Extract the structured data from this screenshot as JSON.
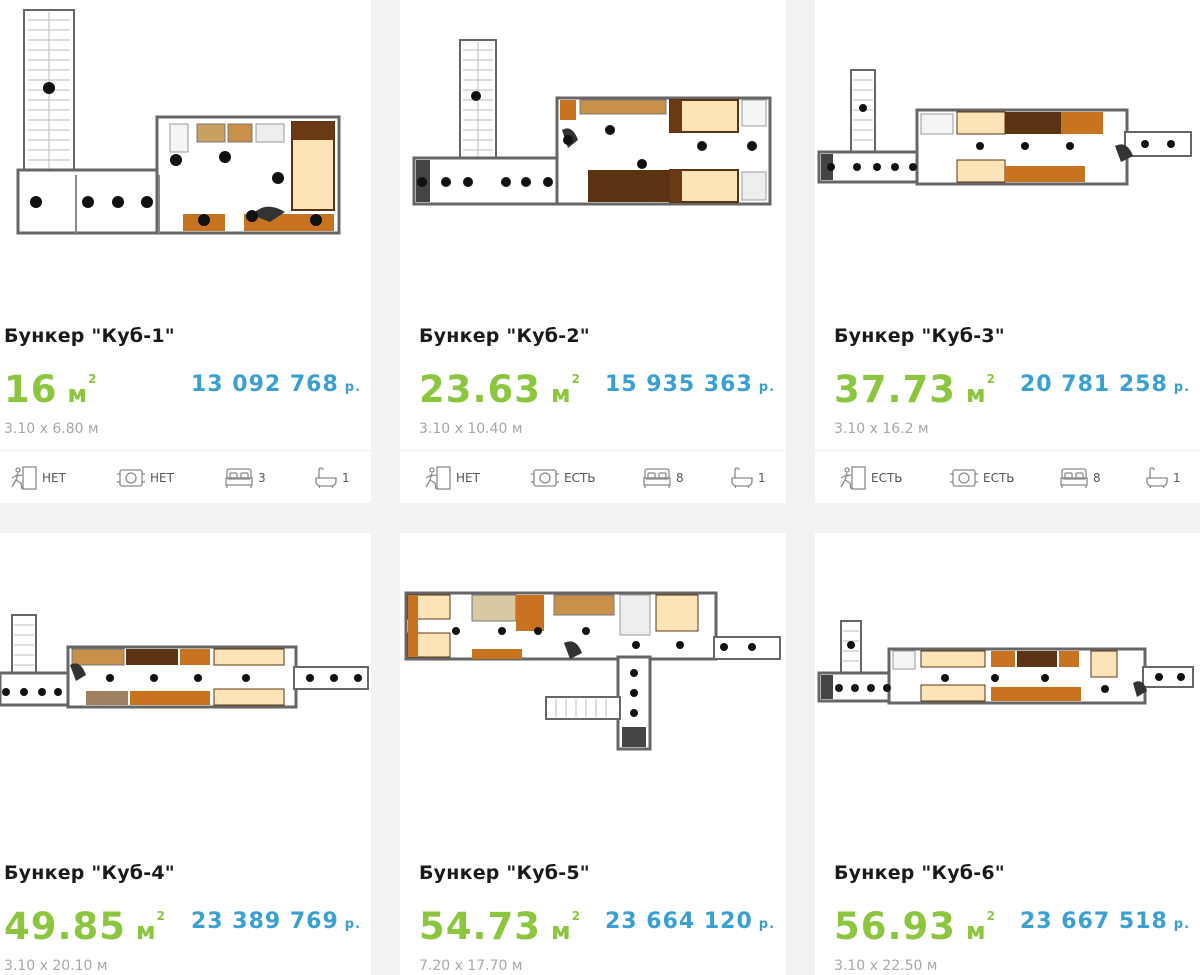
{
  "cards": [
    {
      "title": "Бункер \"Куб-1\"",
      "area_value": "16",
      "area_unit": "м",
      "area_exp": "2",
      "price": "13 092 768",
      "currency": "р.",
      "dims": "3.10 х 6.80 м",
      "exit": "НЕТ",
      "vent": "НЕТ",
      "beds": "3",
      "baths": "1"
    },
    {
      "title": "Бункер \"Куб-2\"",
      "area_value": "23.63",
      "area_unit": "м",
      "area_exp": "2",
      "price": "15 935 363",
      "currency": "р.",
      "dims": "3.10 х 10.40 м",
      "exit": "НЕТ",
      "vent": "ЕСТЬ",
      "beds": "8",
      "baths": "1"
    },
    {
      "title": "Бункер \"Куб-3\"",
      "area_value": "37.73",
      "area_unit": "м",
      "area_exp": "2",
      "price": "20 781 258",
      "currency": "р.",
      "dims": "3.10 х 16.2 м",
      "exit": "ЕСТЬ",
      "vent": "ЕСТЬ",
      "beds": "8",
      "baths": "1"
    },
    {
      "title": "Бункер \"Куб-4\"",
      "area_value": "49.85",
      "area_unit": "м",
      "area_exp": "2",
      "price": "23 389 769",
      "currency": "р.",
      "dims": "3.10 х 20.10 м"
    },
    {
      "title": "Бункер \"Куб-5\"",
      "area_value": "54.73",
      "area_unit": "м",
      "area_exp": "2",
      "price": "23 664 120",
      "currency": "р.",
      "dims": "7.20 х 17.70 м"
    },
    {
      "title": "Бункер \"Куб-6\"",
      "area_value": "56.93",
      "area_unit": "м",
      "area_exp": "2",
      "price": "23 667 518",
      "currency": "р.",
      "dims": "3.10 х 22.50 м"
    }
  ],
  "icons": {
    "exit": "emergency-exit-icon",
    "vent": "ventilation-icon",
    "beds": "bed-icon",
    "baths": "bathtub-icon"
  },
  "colors": {
    "area": "#8cc63f",
    "price": "#3aa0d2",
    "wall": "#6b6b6b",
    "wood": "#c8731f",
    "wood_dark": "#5a3312",
    "bed": "#fde3b8"
  }
}
